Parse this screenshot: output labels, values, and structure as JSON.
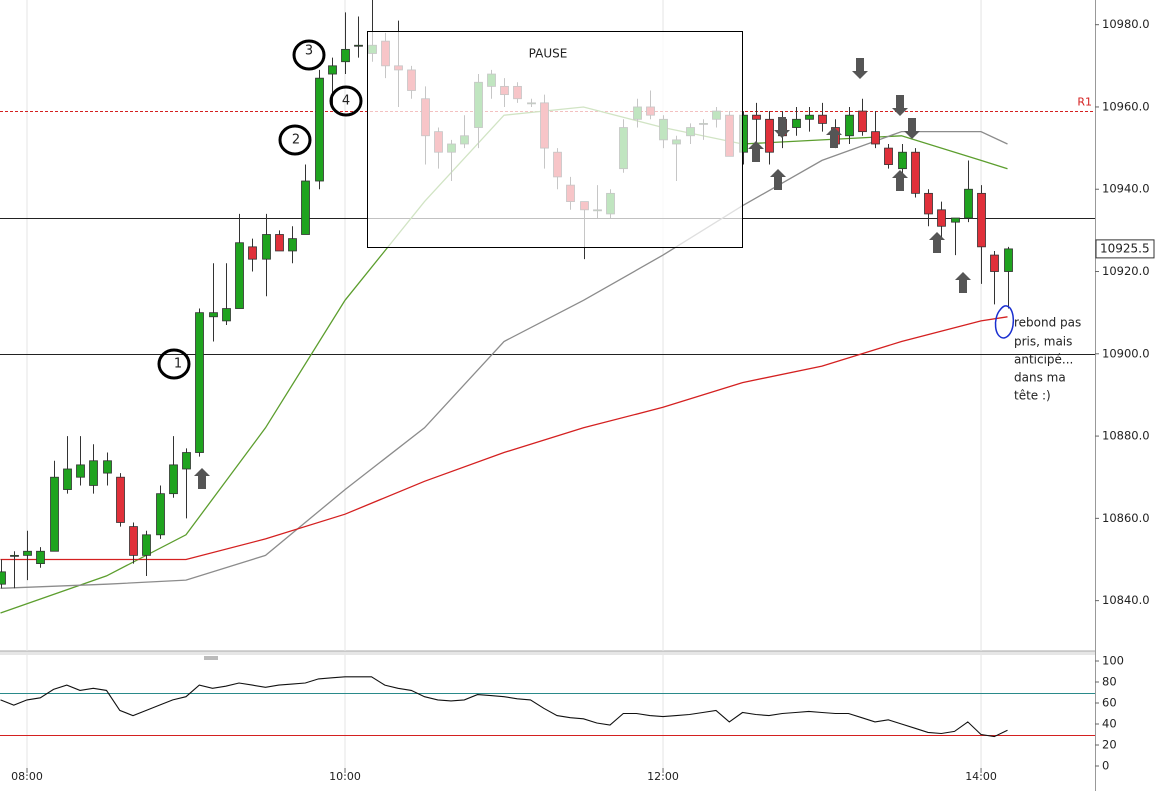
{
  "chart_data": [
    {
      "type": "candlestick",
      "up_color": "#1fa31f",
      "down_color": "#e0303a",
      "xlim": [
        "07:50",
        "14:43"
      ],
      "ylim": [
        10828,
        10986
      ],
      "yticks": [
        {
          "value": 10840,
          "label": "10840.0"
        },
        {
          "value": 10860,
          "label": "10860.0"
        },
        {
          "value": 10880,
          "label": "10880.0"
        },
        {
          "value": 10900,
          "label": "10900.0"
        },
        {
          "value": 10920,
          "label": "10920.0"
        },
        {
          "value": 10940,
          "label": "10940.0"
        },
        {
          "value": 10960,
          "label": "10960.0"
        },
        {
          "value": 10980,
          "label": "10980.0"
        }
      ],
      "x": [
        "07:50",
        "07:55",
        "08:00",
        "08:05",
        "08:10",
        "08:15",
        "08:20",
        "08:25",
        "08:30",
        "08:35",
        "08:40",
        "08:45",
        "08:50",
        "08:55",
        "09:00",
        "09:05",
        "09:10",
        "09:15",
        "09:20",
        "09:25",
        "09:30",
        "09:35",
        "09:40",
        "09:45",
        "09:50",
        "09:55",
        "10:00",
        "10:05",
        "10:10",
        "10:15",
        "10:20",
        "10:25",
        "10:30",
        "10:35",
        "10:40",
        "10:45",
        "10:50",
        "10:55",
        "11:00",
        "11:05",
        "11:10",
        "11:15",
        "11:20",
        "11:25",
        "11:30",
        "11:35",
        "11:40",
        "11:45",
        "11:50",
        "11:55",
        "12:00",
        "12:05",
        "12:10",
        "12:15",
        "12:20",
        "12:25",
        "12:30",
        "12:35",
        "12:40",
        "12:45",
        "12:50",
        "12:55",
        "13:00",
        "13:05",
        "13:10",
        "13:15",
        "13:20",
        "13:25",
        "13:30",
        "13:35",
        "13:40",
        "13:45",
        "13:50",
        "13:55",
        "14:00",
        "14:05",
        "14:10"
      ],
      "open": [
        10844,
        10851,
        10851,
        10849,
        10852,
        10867,
        10870,
        10868,
        10871,
        10870,
        10858,
        10851,
        10856,
        10866,
        10872,
        10876,
        10909,
        10908,
        10911,
        10926,
        10923,
        10929,
        10925,
        10929,
        10942,
        10968,
        10971,
        10975,
        10973,
        10976,
        10970,
        10969,
        10962,
        10954,
        10949,
        10951,
        10955,
        10965,
        10965,
        10965,
        10961,
        10961,
        10949,
        10941,
        10937,
        10935,
        10934,
        10945,
        10957,
        10960,
        10952,
        10951,
        10953,
        10956,
        10957,
        10958,
        10949,
        10958,
        10957,
        10957,
        10955,
        10957,
        10958,
        10955,
        10953,
        10959,
        10954,
        10950,
        10945,
        10949,
        10939,
        10935,
        10932,
        10933,
        10939,
        10924,
        10920
      ],
      "high": [
        10850,
        10852,
        10857,
        10853,
        10874,
        10880,
        10880,
        10878,
        10876,
        10871,
        10859,
        10857,
        10868,
        10880,
        10877,
        10911,
        10922,
        10922,
        10934,
        10928,
        10934,
        10930,
        10931,
        10946,
        10969,
        10972,
        10983,
        10982,
        10986,
        10978,
        10981,
        10970,
        10965,
        10955,
        10952,
        10958,
        10968,
        10969,
        10967,
        10966,
        10962,
        10963,
        10950,
        10943,
        10937,
        10941,
        10940,
        10957,
        10962,
        10964,
        10958,
        10953,
        10956,
        10957,
        10960,
        10959,
        10959,
        10961,
        10959,
        10959,
        10960,
        10960,
        10961,
        10957,
        10960,
        10962,
        10959,
        10951,
        10951,
        10950,
        10940,
        10937,
        10933,
        10947,
        10941,
        10925,
        10926
      ],
      "low": [
        10843,
        10843,
        10845,
        10848,
        10852,
        10866,
        10868,
        10866,
        10868,
        10858,
        10849,
        10846,
        10855,
        10865,
        10860,
        10875,
        10903,
        10907,
        10911,
        10920,
        10914,
        10925,
        10922,
        10929,
        10940,
        10960,
        10968,
        10972,
        10971,
        10967,
        10960,
        10962,
        10946,
        10945,
        10942,
        10950,
        10950,
        10962,
        10960,
        10961,
        10960,
        10945,
        10940,
        10935,
        10923,
        10933,
        10933,
        10944,
        10955,
        10957,
        10950,
        10942,
        10951,
        10952,
        10955,
        10948,
        10946,
        10950,
        10946,
        10950,
        10953,
        10954,
        10954,
        10950,
        10951,
        10953,
        10950,
        10945,
        10943,
        10938,
        10931,
        10928,
        10924,
        10932,
        10917,
        10912,
        10911
      ],
      "close": [
        10847,
        10851,
        10852,
        10852,
        10870,
        10872,
        10873,
        10874,
        10874,
        10859,
        10851,
        10856,
        10866,
        10873,
        10876,
        10910,
        10910,
        10911,
        10927,
        10923,
        10929,
        10925,
        10928,
        10942,
        10967,
        10970,
        10974,
        10975,
        10975,
        10970,
        10969,
        10964,
        10953,
        10949,
        10951,
        10953,
        10966,
        10968,
        10963,
        10962,
        10961,
        10950,
        10943,
        10937,
        10935,
        10935,
        10939,
        10955,
        10960,
        10958,
        10957,
        10952,
        10955,
        10956,
        10959,
        10948,
        10958,
        10957,
        10949,
        10953,
        10957,
        10958,
        10956,
        10951,
        10958,
        10954,
        10951,
        10946,
        10949,
        10939,
        10934,
        10931,
        10933,
        10940,
        10926,
        10920,
        10925.5
      ],
      "series": [
        {
          "color": "#5c9e2e",
          "x": [
            "07:50",
            "08:30",
            "09:00",
            "09:30",
            "10:00",
            "10:30",
            "11:00",
            "11:30",
            "12:00",
            "12:30",
            "13:00",
            "13:30",
            "14:00",
            "14:10"
          ],
          "values": [
            10837,
            10846,
            10856,
            10882,
            10913,
            10937,
            10958,
            10960,
            10955,
            10951,
            10952,
            10953,
            10947,
            10945
          ]
        },
        {
          "color": "#8c8c8c",
          "x": [
            "07:50",
            "08:30",
            "09:00",
            "09:30",
            "10:00",
            "10:30",
            "11:00",
            "11:30",
            "12:00",
            "12:30",
            "13:00",
            "13:30",
            "14:00",
            "14:10"
          ],
          "values": [
            10843,
            10844,
            10845,
            10851,
            10867,
            10882,
            10903,
            10913,
            10924,
            10936,
            10947,
            10954,
            10954,
            10951
          ]
        },
        {
          "color": "#d42020",
          "x": [
            "07:50",
            "08:30",
            "09:00",
            "09:30",
            "10:00",
            "10:30",
            "11:00",
            "11:30",
            "12:00",
            "12:30",
            "13:00",
            "13:30",
            "14:00",
            "14:10"
          ],
          "values": [
            10850,
            10850,
            10850,
            10855,
            10861,
            10869,
            10876,
            10882,
            10887,
            10893,
            10897,
            10903,
            10908,
            10909
          ]
        }
      ],
      "hlines": [
        10933,
        10900
      ],
      "r1": {
        "value": 10959,
        "label": "R1"
      },
      "last_price": 10925.5
    },
    {
      "type": "line",
      "xlim": [
        "07:50",
        "14:43"
      ],
      "ylim": [
        0,
        100
      ],
      "yticks": [
        0,
        20,
        40,
        60,
        80,
        100
      ],
      "xticks": [
        "08:00",
        "10:00",
        "12:00",
        "14:00"
      ],
      "color": "#111111",
      "values": [
        63,
        58,
        63,
        65,
        73,
        77,
        72,
        74,
        72,
        53,
        48,
        53,
        58,
        63,
        66,
        77,
        74,
        76,
        79,
        77,
        75,
        77,
        78,
        79,
        83,
        84,
        85,
        85,
        85,
        77,
        74,
        72,
        66,
        63,
        62,
        63,
        68,
        67,
        66,
        64,
        63,
        55,
        48,
        46,
        45,
        41,
        39,
        50,
        50,
        48,
        47,
        48,
        49,
        51,
        53,
        42,
        51,
        49,
        48,
        50,
        51,
        52,
        51,
        50,
        50,
        46,
        42,
        44,
        40,
        36,
        32,
        31,
        33,
        42,
        30,
        28,
        34
      ],
      "levels": [
        {
          "value": 70,
          "color": "#2a8a8a"
        },
        {
          "value": 30,
          "color": "#d42020"
        }
      ]
    }
  ],
  "annotations": {
    "pause": "PAUSE",
    "circles": [
      "1",
      "2",
      "3",
      "4"
    ],
    "note": [
      "rebond pas",
      "pris, mais",
      "anticipé...",
      "dans ma",
      "tête :)"
    ]
  }
}
